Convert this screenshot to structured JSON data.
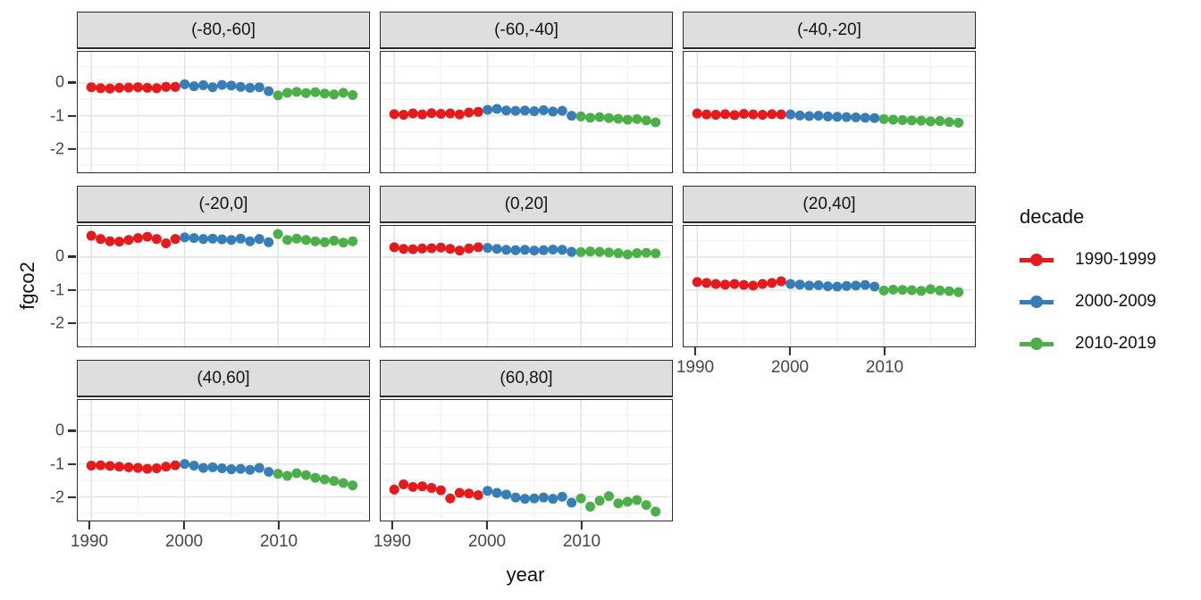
{
  "chart_data": {
    "type": "scatter",
    "title": "",
    "xlabel": "year",
    "ylabel": "fgco2",
    "grid": "major and minor, light gray on white",
    "legend_position": "right",
    "x_years": [
      1990,
      1991,
      1992,
      1993,
      1994,
      1995,
      1996,
      1997,
      1998,
      1999,
      2000,
      2001,
      2002,
      2003,
      2004,
      2005,
      2006,
      2007,
      2008,
      2009,
      2010,
      2011,
      2012,
      2013,
      2014,
      2015,
      2016,
      2017,
      2018
    ],
    "xticks": [
      1990,
      2000,
      2010
    ],
    "yticks": [
      0,
      -1,
      -2
    ],
    "xlim": [
      1988.7,
      2019.6
    ],
    "ylim": [
      -2.72,
      0.95
    ],
    "legend": {
      "title": "decade",
      "entries": [
        {
          "label": "1990-1999",
          "color": "#E41A1C"
        },
        {
          "label": "2000-2009",
          "color": "#377EB8"
        },
        {
          "label": "2010-2019",
          "color": "#4DAF4A"
        }
      ]
    },
    "facets": [
      {
        "label": "(-80,-60]",
        "values": [
          -0.13,
          -0.16,
          -0.17,
          -0.15,
          -0.14,
          -0.13,
          -0.15,
          -0.16,
          -0.12,
          -0.12,
          -0.04,
          -0.1,
          -0.07,
          -0.13,
          -0.06,
          -0.08,
          -0.12,
          -0.15,
          -0.13,
          -0.25,
          -0.38,
          -0.3,
          -0.27,
          -0.31,
          -0.28,
          -0.32,
          -0.35,
          -0.3,
          -0.37
        ]
      },
      {
        "label": "(-60,-40]",
        "values": [
          -0.95,
          -0.97,
          -0.93,
          -0.96,
          -0.92,
          -0.94,
          -0.93,
          -0.96,
          -0.9,
          -0.88,
          -0.82,
          -0.79,
          -0.84,
          -0.85,
          -0.84,
          -0.86,
          -0.83,
          -0.87,
          -0.85,
          -1.0,
          -1.02,
          -1.06,
          -1.04,
          -1.07,
          -1.09,
          -1.12,
          -1.1,
          -1.14,
          -1.2
        ]
      },
      {
        "label": "(-40,-20]",
        "values": [
          -0.93,
          -0.96,
          -0.97,
          -0.95,
          -0.98,
          -0.94,
          -0.96,
          -0.97,
          -0.95,
          -0.96,
          -0.96,
          -0.99,
          -1.01,
          -1.0,
          -1.02,
          -1.03,
          -1.04,
          -1.05,
          -1.06,
          -1.07,
          -1.1,
          -1.12,
          -1.13,
          -1.14,
          -1.15,
          -1.17,
          -1.16,
          -1.19,
          -1.21
        ]
      },
      {
        "label": "(-20,0]",
        "values": [
          0.65,
          0.55,
          0.48,
          0.47,
          0.52,
          0.58,
          0.62,
          0.55,
          0.42,
          0.55,
          0.6,
          0.58,
          0.55,
          0.56,
          0.54,
          0.52,
          0.56,
          0.48,
          0.55,
          0.45,
          0.7,
          0.52,
          0.56,
          0.52,
          0.48,
          0.45,
          0.5,
          0.44,
          0.48
        ]
      },
      {
        "label": "(0,20]",
        "values": [
          0.3,
          0.25,
          0.24,
          0.26,
          0.27,
          0.29,
          0.25,
          0.2,
          0.26,
          0.3,
          0.28,
          0.25,
          0.22,
          0.21,
          0.22,
          0.2,
          0.21,
          0.23,
          0.22,
          0.16,
          0.15,
          0.17,
          0.16,
          0.14,
          0.12,
          0.08,
          0.12,
          0.13,
          0.11
        ]
      },
      {
        "label": "(20,40]",
        "values": [
          -0.76,
          -0.79,
          -0.82,
          -0.84,
          -0.82,
          -0.85,
          -0.87,
          -0.82,
          -0.79,
          -0.74,
          -0.82,
          -0.84,
          -0.87,
          -0.86,
          -0.89,
          -0.9,
          -0.88,
          -0.87,
          -0.85,
          -0.9,
          -1.02,
          -0.99,
          -1.0,
          -1.01,
          -1.03,
          -0.98,
          -1.02,
          -1.04,
          -1.07
        ]
      },
      {
        "label": "(40,60]",
        "values": [
          -1.05,
          -1.04,
          -1.06,
          -1.08,
          -1.1,
          -1.12,
          -1.15,
          -1.13,
          -1.08,
          -1.04,
          -1.0,
          -1.05,
          -1.12,
          -1.1,
          -1.13,
          -1.16,
          -1.15,
          -1.18,
          -1.12,
          -1.24,
          -1.3,
          -1.36,
          -1.28,
          -1.34,
          -1.42,
          -1.47,
          -1.52,
          -1.58,
          -1.65
        ]
      },
      {
        "label": "(60,80]",
        "values": [
          -1.78,
          -1.62,
          -1.7,
          -1.68,
          -1.73,
          -1.8,
          -2.05,
          -1.88,
          -1.9,
          -1.95,
          -1.82,
          -1.88,
          -1.93,
          -2.02,
          -2.06,
          -2.05,
          -2.02,
          -2.06,
          -2.0,
          -2.18,
          -2.05,
          -2.3,
          -2.12,
          -1.98,
          -2.2,
          -2.15,
          -2.1,
          -2.25,
          -2.45
        ]
      }
    ],
    "style": {
      "strip_bg": "#DEDEDE",
      "panel_border": "#2b2b2b",
      "grid_major": "#E4E4E4",
      "grid_minor": "#F2F2F2",
      "tick_label_color": "#474747",
      "point_radius": 5.6
    }
  }
}
